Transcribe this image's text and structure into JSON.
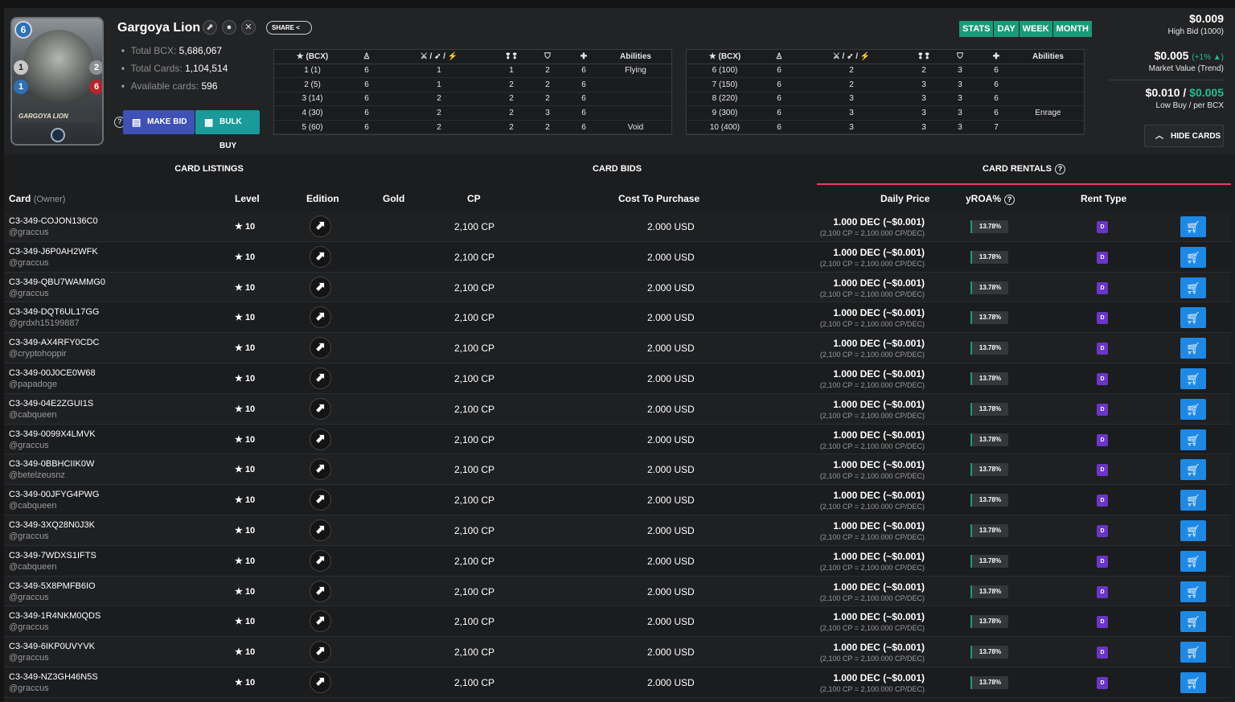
{
  "card": {
    "name": "Gargoya Lion",
    "name_on_art": "GARGOYA LION",
    "mana": "6",
    "attack": "1",
    "speed": "1",
    "health": "6",
    "armor": "2"
  },
  "header_icons": [
    "untamed-edition-icon",
    "neutral-element-icon",
    "close-icon"
  ],
  "share_label": "SHARE",
  "summary": [
    {
      "label": "Total BCX:",
      "value": "5,686,067"
    },
    {
      "label": "Total Cards:",
      "value": "1,104,514"
    },
    {
      "label": "Available cards:",
      "value": "596"
    }
  ],
  "buttons": {
    "make_bid": "MAKE BID",
    "bulk_buy": "BULK BUY",
    "hide_cards": "HIDE CARDS"
  },
  "level_table_header": {
    "bcx": "(BCX)",
    "abilities": "Abilities"
  },
  "level_table_left": [
    {
      "lvl": "1 (1)",
      "mana": "6",
      "atk": "1",
      "spd": "1",
      "armor": "2",
      "hp": "6",
      "ab": "Flying"
    },
    {
      "lvl": "2 (5)",
      "mana": "6",
      "atk": "1",
      "spd": "2",
      "armor": "2",
      "hp": "6",
      "ab": ""
    },
    {
      "lvl": "3 (14)",
      "mana": "6",
      "atk": "2",
      "spd": "2",
      "armor": "2",
      "hp": "6",
      "ab": ""
    },
    {
      "lvl": "4 (30)",
      "mana": "6",
      "atk": "2",
      "spd": "2",
      "armor": "3",
      "hp": "6",
      "ab": ""
    },
    {
      "lvl": "5 (60)",
      "mana": "6",
      "atk": "2",
      "spd": "2",
      "armor": "2",
      "hp": "6",
      "ab": "Void"
    }
  ],
  "level_table_right": [
    {
      "lvl": "6 (100)",
      "mana": "6",
      "atk": "2",
      "spd": "2",
      "armor": "3",
      "hp": "6",
      "ab": ""
    },
    {
      "lvl": "7 (150)",
      "mana": "6",
      "atk": "2",
      "spd": "3",
      "armor": "3",
      "hp": "6",
      "ab": ""
    },
    {
      "lvl": "8 (220)",
      "mana": "6",
      "atk": "3",
      "spd": "3",
      "armor": "3",
      "hp": "6",
      "ab": ""
    },
    {
      "lvl": "9 (300)",
      "mana": "6",
      "atk": "3",
      "spd": "3",
      "armor": "3",
      "hp": "6",
      "ab": "Enrage"
    },
    {
      "lvl": "10 (400)",
      "mana": "6",
      "atk": "3",
      "spd": "3",
      "armor": "3",
      "hp": "7",
      "ab": ""
    }
  ],
  "time_tabs": [
    "STATS",
    "DAY",
    "WEEK",
    "MONTH"
  ],
  "prices": {
    "high_bid": "$0.009",
    "high_bid_label": "High Bid (1000)",
    "market_value": "$0.005",
    "market_trend": "(+1% ▲)",
    "market_label": "Market Value (Trend)",
    "low_buy": "$0.010 /",
    "per_bcx": "$0.005",
    "low_buy_label": "Low Buy / per BCX"
  },
  "tabs": [
    "CARD LISTINGS",
    "CARD BIDS",
    "CARD RENTALS"
  ],
  "columns": {
    "card": "Card",
    "owner": "(Owner)",
    "level": "Level",
    "edition": "Edition",
    "gold": "Gold",
    "cp": "CP",
    "cost": "Cost To Purchase",
    "daily": "Daily Price",
    "yroa": "yROA%",
    "rent_type": "Rent Type"
  },
  "common": {
    "level": "10",
    "cp": "2,100 CP",
    "cost": "2.000 USD",
    "daily": "1.000 DEC (~$0.001)",
    "daily_sub": "(2,100 CP = 2,100.000 CP/DEC)",
    "yroa": "13.78%",
    "rent_type": "D",
    "colors": {
      "accent_green": "#1a9a78",
      "cart_blue": "#1e88e5",
      "rent_purple": "#6b35c9",
      "active_tab": "#e0426a"
    }
  },
  "rows": [
    {
      "id": "C3-349-COJON136C0",
      "owner": "@graccus"
    },
    {
      "id": "C3-349-J6P0AH2WFK",
      "owner": "@graccus"
    },
    {
      "id": "C3-349-QBU7WAMMG0",
      "owner": "@graccus"
    },
    {
      "id": "C3-349-DQT6UL17GG",
      "owner": "@grdxh15199887"
    },
    {
      "id": "C3-349-AX4RFY0CDC",
      "owner": "@cryptohoppir"
    },
    {
      "id": "C3-349-00J0CE0W68",
      "owner": "@papadoge"
    },
    {
      "id": "C3-349-04E2ZGUI1S",
      "owner": "@cabqueen"
    },
    {
      "id": "C3-349-0099X4LMVK",
      "owner": "@graccus"
    },
    {
      "id": "C3-349-0BBHCIIK0W",
      "owner": "@betelzeusnz"
    },
    {
      "id": "C3-349-00JFYG4PWG",
      "owner": "@cabqueen"
    },
    {
      "id": "C3-349-3XQ28N0J3K",
      "owner": "@graccus"
    },
    {
      "id": "C3-349-7WDXS1IFTS",
      "owner": "@cabqueen"
    },
    {
      "id": "C3-349-5X8PMFB6IO",
      "owner": "@graccus"
    },
    {
      "id": "C3-349-1R4NKM0QDS",
      "owner": "@graccus"
    },
    {
      "id": "C3-349-6IKP0UVYVK",
      "owner": "@graccus"
    },
    {
      "id": "C3-349-NZ3GH46N5S",
      "owner": "@graccus"
    }
  ]
}
